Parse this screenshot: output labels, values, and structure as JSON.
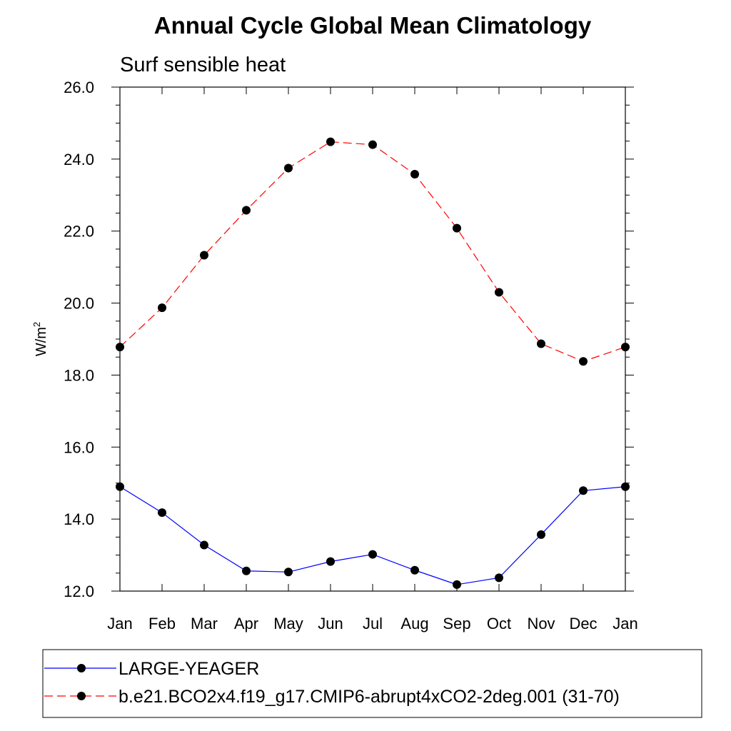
{
  "chart_data": {
    "type": "line",
    "title": "Annual Cycle Global Mean Climatology",
    "subtitle": "Surf sensible heat",
    "ylabel": "W/m",
    "ylabel_sup": "2",
    "categories": [
      "Jan",
      "Feb",
      "Mar",
      "Apr",
      "May",
      "Jun",
      "Jul",
      "Aug",
      "Sep",
      "Oct",
      "Nov",
      "Dec",
      "Jan"
    ],
    "ylim": [
      12.0,
      26.0
    ],
    "yticks": [
      "12.0",
      "14.0",
      "16.0",
      "18.0",
      "20.0",
      "22.0",
      "24.0",
      "26.0"
    ],
    "series": [
      {
        "name": "LARGE-YEAGER",
        "color": "#0000ff",
        "dash": "solid",
        "values": [
          14.9,
          14.18,
          13.28,
          12.56,
          12.53,
          12.82,
          13.02,
          12.58,
          12.18,
          12.37,
          13.57,
          14.79,
          14.9
        ]
      },
      {
        "name": "b.e21.BCO2x4.f19_g17.CMIP6-abrupt4xCO2-2deg.001 (31-70)",
        "color": "#ff0000",
        "dash": "dashed",
        "values": [
          18.78,
          19.87,
          21.33,
          22.58,
          23.75,
          24.48,
          24.4,
          23.58,
          22.08,
          20.3,
          18.87,
          18.38,
          18.78
        ]
      }
    ],
    "grid": false,
    "legend_position": "bottom"
  }
}
